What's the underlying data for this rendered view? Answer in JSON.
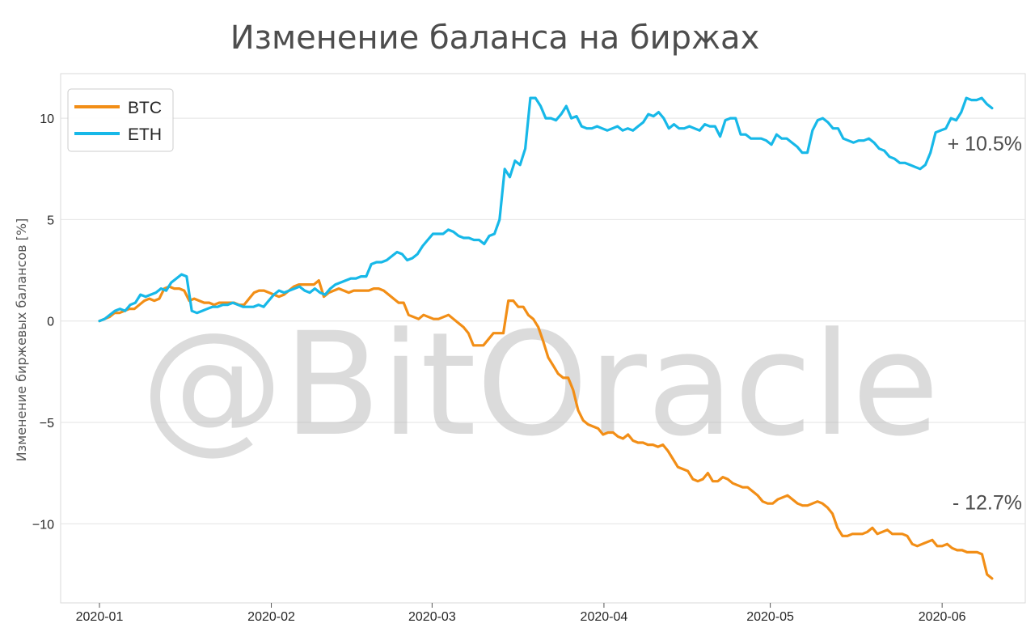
{
  "chart_data": {
    "type": "line",
    "title": "Изменение баланса на биржах",
    "xlabel": "",
    "ylabel": "Изменение биржевых балансов [%]",
    "x_start": "2020-01-01",
    "x_end": "2020-06-10",
    "xlim": [
      "2019-12-25",
      "2020-06-16"
    ],
    "ylim": [
      -13.9,
      12.2
    ],
    "x_ticks": [
      "2020-01",
      "2020-02",
      "2020-03",
      "2020-04",
      "2020-05",
      "2020-06"
    ],
    "y_ticks": [
      10,
      5,
      0,
      -5,
      -10
    ],
    "y_tick_labels": [
      "10",
      "5",
      "0",
      "−5",
      "−10"
    ],
    "grid": "horizontal",
    "legend_position": "top-left",
    "watermark": "@BitOracle",
    "annotations": [
      {
        "text": "+ 10.5%",
        "series": "ETH",
        "y": 8.4
      },
      {
        "text": "- 12.7%",
        "series": "BTC",
        "y": -9.3
      }
    ],
    "series": [
      {
        "name": "BTC",
        "color": "#f28e16",
        "values": [
          0,
          0.1,
          0.2,
          0.4,
          0.4,
          0.5,
          0.6,
          0.6,
          0.8,
          1.0,
          1.1,
          1.0,
          1.1,
          1.6,
          1.7,
          1.6,
          1.6,
          1.5,
          1.0,
          1.1,
          1.0,
          0.9,
          0.9,
          0.8,
          0.9,
          0.9,
          0.9,
          0.9,
          0.8,
          0.8,
          1.1,
          1.4,
          1.5,
          1.5,
          1.4,
          1.3,
          1.2,
          1.3,
          1.5,
          1.7,
          1.8,
          1.8,
          1.8,
          1.8,
          2.0,
          1.2,
          1.4,
          1.5,
          1.6,
          1.5,
          1.4,
          1.5,
          1.5,
          1.5,
          1.5,
          1.6,
          1.6,
          1.5,
          1.3,
          1.1,
          0.9,
          0.9,
          0.3,
          0.2,
          0.1,
          0.3,
          0.2,
          0.1,
          0.1,
          0.2,
          0.3,
          0.1,
          -0.1,
          -0.3,
          -0.6,
          -1.2,
          -1.2,
          -1.2,
          -0.9,
          -0.6,
          -0.6,
          -0.6,
          1.0,
          1.0,
          0.7,
          0.7,
          0.3,
          0.1,
          -0.3,
          -1.0,
          -1.8,
          -2.2,
          -2.6,
          -2.8,
          -2.8,
          -3.4,
          -4.4,
          -4.9,
          -5.1,
          -5.2,
          -5.3,
          -5.6,
          -5.5,
          -5.5,
          -5.7,
          -5.8,
          -5.6,
          -5.9,
          -6.0,
          -6.0,
          -6.1,
          -6.1,
          -6.2,
          -6.1,
          -6.4,
          -6.8,
          -7.2,
          -7.3,
          -7.4,
          -7.8,
          -7.9,
          -7.8,
          -7.5,
          -7.9,
          -7.9,
          -7.7,
          -7.8,
          -8.0,
          -8.1,
          -8.2,
          -8.2,
          -8.4,
          -8.6,
          -8.9,
          -9.0,
          -9.0,
          -8.8,
          -8.7,
          -8.6,
          -8.8,
          -9.0,
          -9.1,
          -9.1,
          -9.0,
          -8.9,
          -9.0,
          -9.2,
          -9.5,
          -10.2,
          -10.6,
          -10.6,
          -10.5,
          -10.5,
          -10.5,
          -10.4,
          -10.2,
          -10.5,
          -10.4,
          -10.3,
          -10.5,
          -10.5,
          -10.5,
          -10.6,
          -11.0,
          -11.1,
          -11.0,
          -10.9,
          -10.8,
          -11.1,
          -11.1,
          -11.0,
          -11.2,
          -11.3,
          -11.3,
          -11.4,
          -11.4,
          -11.4,
          -11.5,
          -12.5,
          -12.7
        ]
      },
      {
        "name": "ETH",
        "color": "#17b8e8",
        "values": [
          0,
          0.1,
          0.3,
          0.5,
          0.6,
          0.5,
          0.8,
          0.9,
          1.3,
          1.2,
          1.3,
          1.4,
          1.6,
          1.5,
          1.9,
          2.1,
          2.3,
          2.2,
          0.5,
          0.4,
          0.5,
          0.6,
          0.7,
          0.7,
          0.8,
          0.8,
          0.9,
          0.8,
          0.7,
          0.7,
          0.7,
          0.8,
          0.7,
          1.0,
          1.3,
          1.5,
          1.4,
          1.5,
          1.6,
          1.7,
          1.5,
          1.4,
          1.6,
          1.4,
          1.3,
          1.6,
          1.8,
          1.9,
          2.0,
          2.1,
          2.1,
          2.2,
          2.2,
          2.8,
          2.9,
          2.9,
          3.0,
          3.2,
          3.4,
          3.3,
          3.0,
          3.1,
          3.3,
          3.7,
          4.0,
          4.3,
          4.3,
          4.3,
          4.5,
          4.4,
          4.2,
          4.1,
          4.1,
          4.0,
          4.0,
          3.8,
          4.2,
          4.3,
          5.0,
          7.5,
          7.1,
          7.9,
          7.7,
          8.5,
          11.0,
          11.0,
          10.6,
          10.0,
          10.0,
          9.9,
          10.2,
          10.6,
          10.0,
          10.1,
          9.6,
          9.5,
          9.5,
          9.6,
          9.5,
          9.4,
          9.5,
          9.6,
          9.4,
          9.5,
          9.4,
          9.6,
          9.8,
          10.2,
          10.1,
          10.3,
          10.0,
          9.5,
          9.7,
          9.5,
          9.5,
          9.6,
          9.5,
          9.4,
          9.7,
          9.6,
          9.6,
          9.1,
          9.9,
          10.0,
          10.0,
          9.2,
          9.2,
          9.0,
          9.0,
          9.0,
          8.9,
          8.7,
          9.2,
          9.0,
          9.0,
          8.8,
          8.6,
          8.3,
          8.3,
          9.4,
          9.9,
          10.0,
          9.8,
          9.5,
          9.5,
          9.0,
          8.9,
          8.8,
          8.9,
          8.9,
          9.0,
          8.8,
          8.5,
          8.4,
          8.1,
          8.0,
          7.8,
          7.8,
          7.7,
          7.6,
          7.5,
          7.7,
          8.3,
          9.3,
          9.4,
          9.5,
          10.0,
          9.9,
          10.3,
          11.0,
          10.9,
          10.9,
          11.0,
          10.7,
          10.5
        ]
      }
    ]
  }
}
